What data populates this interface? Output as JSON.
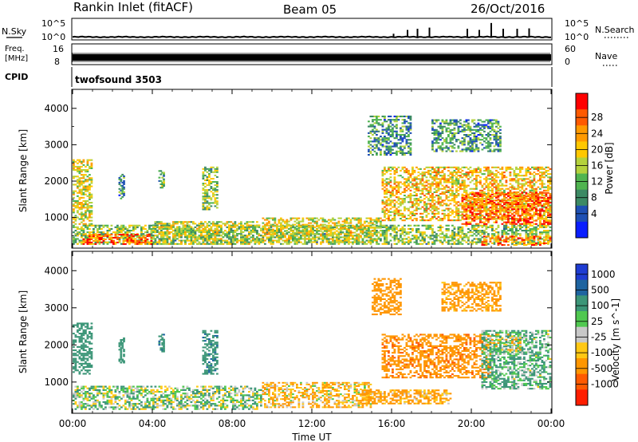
{
  "header": {
    "station": "Rankin Inlet (fitACF)",
    "beam": "Beam 05",
    "date": "26/Oct/2016"
  },
  "noise_panel": {
    "left_label": "N.Sky",
    "right_label": "N.Search",
    "left_ticks": [
      "10^5",
      "10^0"
    ],
    "right_ticks": [
      "10^5",
      "10^0"
    ]
  },
  "freq_panel": {
    "left_label_1": "Freq.",
    "left_label_2": "[MHz]",
    "right_label": "Nave",
    "left_ticks": [
      "16",
      "8"
    ],
    "right_ticks": [
      "60",
      "0"
    ]
  },
  "cpid_panel": {
    "label": "CPID",
    "value": "twofsound 3503"
  },
  "power_panel": {
    "ylabel": "Slant Range [km]",
    "y_ticks": [
      "4000",
      "3000",
      "2000",
      "1000"
    ],
    "colorbar_label": "Power [dB]",
    "colorbar_ticks": [
      "28",
      "24",
      "20",
      "16",
      "12",
      "8",
      "4"
    ],
    "colorbar_colors": [
      "#ff0000",
      "#ff5a00",
      "#ff9a00",
      "#ffc800",
      "#b4d23c",
      "#50b450",
      "#3c8a64",
      "#1e50b4",
      "#0a1eff"
    ]
  },
  "velocity_panel": {
    "ylabel": "Slant Range [km]",
    "y_ticks": [
      "4000",
      "3000",
      "2000",
      "1000"
    ],
    "colorbar_label": "Velocity [m s^-1]",
    "colorbar_ticks": [
      "1000",
      "500",
      "100",
      "25",
      "-25",
      "-100",
      "-500",
      "-1000"
    ],
    "colorbar_colors": [
      "#1e3cd2",
      "#1e64a0",
      "#3c9678",
      "#50c850",
      "#c8c8c8",
      "#ffc814",
      "#ff9600",
      "#ff5a00",
      "#ff1e00"
    ]
  },
  "x_axis": {
    "label": "Time UT",
    "ticks": [
      "00:00",
      "04:00",
      "08:00",
      "12:00",
      "16:00",
      "20:00",
      "00:00"
    ]
  },
  "chart_data": [
    {
      "type": "line",
      "title": "N.Sky / N.Search",
      "ylim_log10": [
        0,
        5
      ],
      "x_hours": [
        0,
        2,
        4,
        6,
        8,
        10,
        12,
        14,
        16,
        17,
        18,
        19,
        20,
        21,
        22,
        23,
        24
      ],
      "sky_log10": [
        0.5,
        0.6,
        0.5,
        0.6,
        0.5,
        0.5,
        0.6,
        0.6,
        0.6,
        0.6,
        0.6,
        0.6,
        0.6,
        0.6,
        0.6,
        0.6,
        0.6
      ],
      "search_spikes_x_hours": [
        16.1,
        16.8,
        17.3,
        17.9,
        19.8,
        20.4,
        21.0,
        21.6,
        22.3,
        22.9
      ],
      "search_spikes_log10": [
        1.4,
        2.4,
        2.7,
        3.0,
        2.7,
        2.4,
        4.2,
        2.7,
        2.7,
        2.8
      ]
    },
    {
      "type": "line",
      "title": "Freq / Nave",
      "freq_mhz_range": [
        10,
        12
      ],
      "nave_range": [
        0,
        60
      ]
    },
    {
      "type": "heatmap",
      "title": "Power",
      "xlabel": "Time UT",
      "ylabel": "Slant Range [km]",
      "xlim_hours": [
        0,
        24
      ],
      "ylim_km": [
        180,
        4500
      ],
      "value_unit": "dB",
      "color_range": [
        0,
        32
      ],
      "blobs": [
        {
          "t0": 0.0,
          "t1": 1.0,
          "r0": 800,
          "r1": 2600,
          "v": 18
        },
        {
          "t0": 0.0,
          "t1": 24.0,
          "r0": 250,
          "r1": 800,
          "v": 14
        },
        {
          "t0": 0.5,
          "t1": 4.0,
          "r0": 250,
          "r1": 550,
          "v": 26
        },
        {
          "t0": 4.0,
          "t1": 9.5,
          "r0": 250,
          "r1": 900,
          "v": 16
        },
        {
          "t0": 9.5,
          "t1": 15.5,
          "r0": 300,
          "r1": 1000,
          "v": 18
        },
        {
          "t0": 15.5,
          "t1": 24.0,
          "r0": 900,
          "r1": 2400,
          "v": 20
        },
        {
          "t0": 19.5,
          "t1": 24.0,
          "r0": 800,
          "r1": 1700,
          "v": 26
        },
        {
          "t0": 20.5,
          "t1": 24.0,
          "r0": 220,
          "r1": 500,
          "v": 24
        },
        {
          "t0": 14.8,
          "t1": 17.0,
          "r0": 2700,
          "r1": 3800,
          "v": 10
        },
        {
          "t0": 18.0,
          "t1": 21.5,
          "r0": 2800,
          "r1": 3700,
          "v": 10
        },
        {
          "t0": 6.5,
          "t1": 7.3,
          "r0": 1200,
          "r1": 2400,
          "v": 14
        },
        {
          "t0": 2.3,
          "t1": 2.6,
          "r0": 1500,
          "r1": 2200,
          "v": 10
        },
        {
          "t0": 4.3,
          "t1": 4.6,
          "r0": 1800,
          "r1": 2300,
          "v": 12
        }
      ]
    },
    {
      "type": "heatmap",
      "title": "Velocity",
      "xlabel": "Time UT",
      "ylabel": "Slant Range [km]",
      "xlim_hours": [
        0,
        24
      ],
      "ylim_km": [
        180,
        4500
      ],
      "value_unit": "m s^-1",
      "color_range": [
        -1000,
        1000
      ],
      "blobs": [
        {
          "t0": 0.0,
          "t1": 1.0,
          "r0": 1200,
          "r1": 2600,
          "v": 300
        },
        {
          "t0": 0.0,
          "t1": 9.5,
          "r0": 250,
          "r1": 900,
          "v": 50
        },
        {
          "t0": 9.5,
          "t1": 15.0,
          "r0": 300,
          "r1": 1000,
          "v": -100
        },
        {
          "t0": 14.5,
          "t1": 19.0,
          "r0": 400,
          "r1": 800,
          "v": -150
        },
        {
          "t0": 15.5,
          "t1": 21.0,
          "r0": 1100,
          "r1": 2300,
          "v": -400
        },
        {
          "t0": 20.5,
          "t1": 24.0,
          "r0": 800,
          "r1": 2400,
          "v": 120
        },
        {
          "t0": 21.0,
          "t1": 22.5,
          "r0": 1800,
          "r1": 2300,
          "v": 0
        },
        {
          "t0": 15.0,
          "t1": 16.5,
          "r0": 2800,
          "r1": 3800,
          "v": -250
        },
        {
          "t0": 18.5,
          "t1": 21.5,
          "r0": 2900,
          "r1": 3700,
          "v": -200
        },
        {
          "t0": 6.5,
          "t1": 7.3,
          "r0": 1200,
          "r1": 2400,
          "v": 400
        },
        {
          "t0": 2.3,
          "t1": 2.6,
          "r0": 1500,
          "r1": 2200,
          "v": 300
        },
        {
          "t0": 4.3,
          "t1": 4.6,
          "r0": 1800,
          "r1": 2300,
          "v": 400
        }
      ]
    }
  ]
}
